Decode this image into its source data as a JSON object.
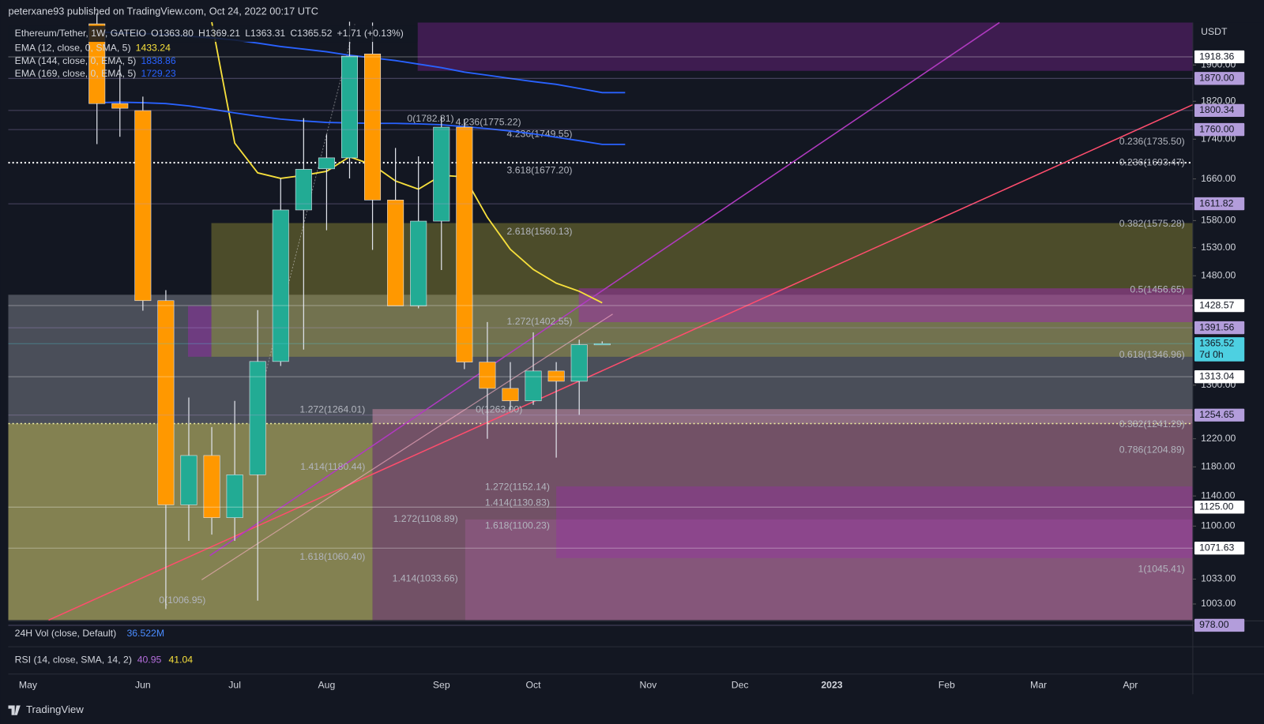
{
  "header": {
    "publisher": "peterxane93 published on TradingView.com, Oct 24, 2022 00:17 UTC",
    "symbol": "Ethereum/Tether, 1W, GATEIO",
    "ohlc": [
      "O1363.80",
      "H1369.21",
      "L1363.31",
      "C1365.52"
    ],
    "change": "+1.71 (+0.13%)",
    "currency": "USDT",
    "countdown": "7d 0h",
    "brand": "TradingView"
  },
  "panes": {
    "volume": {
      "name": "24H Vol (close, Default)",
      "value": "36.522M"
    },
    "rsi": {
      "name": "RSI (14, close, SMA, 14, 2)",
      "values": [
        "40.95",
        "41.04"
      ]
    }
  },
  "chart_data": {
    "type": "candlestick",
    "log_scale": true,
    "ylim": [
      984,
      1998
    ],
    "yticks": [
      {
        "value": 1900,
        "label": "1900.00"
      },
      {
        "value": 1820,
        "label": "1820.00"
      },
      {
        "value": 1740,
        "label": "1740.00"
      },
      {
        "value": 1660,
        "label": "1660.00"
      },
      {
        "value": 1580,
        "label": "1580.00"
      },
      {
        "value": 1530,
        "label": "1530.00"
      },
      {
        "value": 1480,
        "label": "1480.00"
      },
      {
        "value": 1300,
        "label": "1300.00"
      },
      {
        "value": 1220,
        "label": "1220.00"
      },
      {
        "value": 1180,
        "label": "1180.00"
      },
      {
        "value": 1140,
        "label": "1140.00"
      },
      {
        "value": 1100,
        "label": "1100.00"
      },
      {
        "value": 1033,
        "label": "1033.00"
      },
      {
        "value": 1003,
        "label": "1003.00"
      }
    ],
    "xlim": [
      -3.86,
      47.72
    ],
    "xticks": [
      {
        "value": -3,
        "label": "May"
      },
      {
        "value": 2,
        "label": "Jun"
      },
      {
        "value": 6,
        "label": "Jul"
      },
      {
        "value": 10,
        "label": "Aug"
      },
      {
        "value": 15,
        "label": "Sep"
      },
      {
        "value": 19,
        "label": "Oct"
      },
      {
        "value": 24,
        "label": "Nov"
      },
      {
        "value": 28,
        "label": "Dec"
      },
      {
        "value": 32,
        "label": "2023"
      },
      {
        "value": 37,
        "label": "Feb"
      },
      {
        "value": 41,
        "label": "Mar"
      },
      {
        "value": 45,
        "label": "Apr"
      }
    ],
    "up_color": "#22ab94",
    "down_color": "#ff9800",
    "x": [
      0,
      1,
      2,
      3,
      4,
      5,
      6,
      7,
      8,
      9,
      10,
      11,
      12,
      13,
      14,
      15,
      16,
      17,
      18,
      19,
      20,
      21,
      22,
      23
    ],
    "open": [
      1995,
      1815,
      1800,
      1437,
      1128,
      1196,
      1111,
      1169,
      1337,
      1600,
      1680,
      1702,
      1925,
      1619,
      1428,
      1579,
      1765,
      1336,
      1295,
      1276,
      1322,
      1306,
      1363.8,
      null
    ],
    "high": [
      2020,
      1900,
      1830,
      1455,
      1281,
      1237,
      1276,
      1421,
      1661,
      1784,
      1750,
      2000,
      1998,
      1722,
      1705,
      1787,
      1782,
      1401,
      1336,
      1384,
      1336,
      1372,
      1369.21,
      null
    ],
    "low": [
      1730,
      1745,
      1420,
      997,
      1081,
      1089,
      1081,
      1007,
      1330,
      1356,
      1562,
      1661,
      1526,
      1428,
      1424,
      1490,
      1325,
      1220,
      1262,
      1270,
      1193,
      1255,
      1363.31,
      null
    ],
    "close": [
      1815,
      1805,
      1437,
      1128,
      1196,
      1111,
      1169,
      1337,
      1600,
      1679,
      1702,
      1920,
      1619,
      1428,
      1579,
      1765,
      1336,
      1295,
      1276,
      1322,
      1306,
      1363.8,
      1365.52,
      null
    ],
    "series": [
      {
        "name": "EMA (12, close, 0, SMA, 5)",
        "legend_value": "1433.24",
        "color": "#f7e03c",
        "values": [
          null,
          null,
          null,
          null,
          null,
          1999,
          1732,
          1672,
          1661,
          1667,
          1675,
          1704,
          1688,
          1656,
          1640,
          1667,
          1664,
          1586,
          1527,
          1491,
          1467,
          1453,
          1433.24,
          null
        ]
      },
      {
        "name": "EMA (144, close, 0, EMA, 5)",
        "legend_value": "1838.86",
        "color": "#2962ff",
        "values": [
          1976,
          1974,
          1972,
          1970,
          1966,
          1962,
          1957,
          1950,
          1942,
          1936,
          1930,
          1922,
          1916,
          1910,
          1902,
          1894,
          1884,
          1877,
          1870,
          1863,
          1857,
          1848,
          1838.86,
          1838.86
        ]
      },
      {
        "name": "EMA (169, close, 0, EMA, 5)",
        "legend_value": "1729.23",
        "color": "#2962ff",
        "values": [
          1817,
          1818,
          1817,
          1815,
          1810,
          1803,
          1795,
          1788,
          1782,
          1778,
          1775,
          1774,
          1773,
          1773,
          1772,
          1770,
          1766,
          1762,
          1757,
          1751,
          1744,
          1737,
          1729.23,
          1729.23
        ]
      }
    ],
    "levels": [
      {
        "value": 1918.36,
        "color": "#ffffff"
      },
      {
        "value": 1870,
        "label": "1870.00",
        "color": "#b39ddb"
      },
      {
        "value": 1800.34,
        "color": "#b39ddb"
      },
      {
        "value": 1760,
        "label": "1760.00",
        "color": "#b39ddb"
      },
      {
        "value": 1611.82,
        "color": "#b39ddb"
      },
      {
        "value": 1428.57,
        "color": "#ffffff"
      },
      {
        "value": 1391.56,
        "color": "#b39ddb"
      },
      {
        "value": 1365.52,
        "color": "#4dd0e1"
      },
      {
        "value": 1313.04,
        "color": "#ffffff"
      },
      {
        "value": 1254.65,
        "color": "#b39ddb"
      },
      {
        "value": 1125,
        "label": "1125.00",
        "color": "#ffffff"
      },
      {
        "value": 1071.63,
        "color": "#ffffff"
      },
      {
        "value": 978,
        "label": "978.00",
        "color": "#b39ddb"
      }
    ],
    "annotations": [
      "0.236(1735.50)",
      "0.236(1693.47)",
      "0.382(1575.28)",
      "0.5(1456.65)",
      "0.618(1346.96)",
      "0.382(1241.29)",
      "0.786(1204.89)",
      "1(1045.41)",
      "4.236(1749.55)",
      "0(1782.81)",
      "4.236(1775.22)",
      "3.618(1677.20)",
      "2.618(1560.13)",
      "1.272(1402.55)",
      "1.272(1264.01)",
      "0(1263.00)",
      "1.414(1180.44)",
      "1.272(1152.14)",
      "1.414(1130.83)",
      "1.618(1100.23)",
      "1.272(1108.89)",
      "1.618(1060.40)",
      "1.414(1033.66)",
      "0(1006.95)"
    ]
  }
}
